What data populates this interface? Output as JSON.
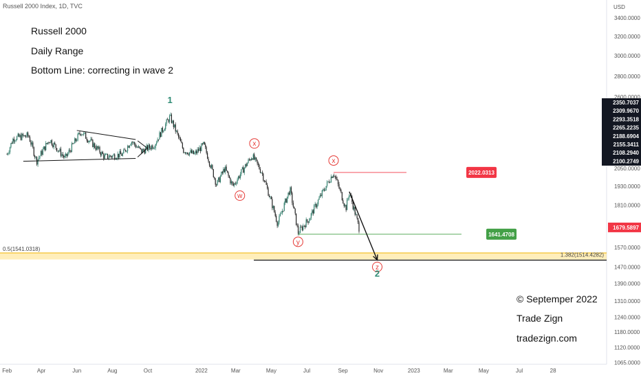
{
  "header": {
    "title": "Russell 2000 Index, 1D, TVC"
  },
  "notes": {
    "line1": "Russell 2000",
    "line2": "Daily Range",
    "line3": "Bottom Line: correcting in wave 2"
  },
  "footer": {
    "copyright": "© Septemper 2022",
    "brand": "Trade Zign",
    "site": "tradezign.com"
  },
  "colors": {
    "candle_up": "#2e7d6b",
    "candle_down": "#222222",
    "wave_label": "#2e8b74",
    "sub_wave": "#e53935",
    "red_tag": "#f23645",
    "green_tag": "#43a047",
    "price_tag": "#f23645",
    "fib_band": "#ffe082"
  },
  "chart_data": {
    "type": "candlestick",
    "title": "Russell 2000 Index, 1D, TVC",
    "currency": "USD",
    "x_range": [
      "2021-02-01",
      "2023-11-28"
    ],
    "ylim": [
      1065,
      3600
    ],
    "y_scale": "log",
    "y_ticks": [
      "3400.0000",
      "3200.0000",
      "3000.0000",
      "2800.0000",
      "2600.0000",
      "2050.0000",
      "1930.0000",
      "1810.0000",
      "1570.0000",
      "1470.0000",
      "1390.0000",
      "1310.0000",
      "1240.0000",
      "1180.0000",
      "1120.0000",
      "1065.0000"
    ],
    "x_ticks": [
      "Feb",
      "Apr",
      "Jun",
      "Aug",
      "Oct",
      "2022",
      "Mar",
      "May",
      "Jul",
      "Sep",
      "Nov",
      "2023",
      "Mar",
      "May",
      "Jul",
      "28"
    ],
    "x_tick_dates": [
      "2021-02-01",
      "2021-04-01",
      "2021-06-01",
      "2021-08-01",
      "2021-10-01",
      "2022-01-01",
      "2022-03-01",
      "2022-05-01",
      "2022-07-01",
      "2022-09-01",
      "2022-11-01",
      "2023-01-01",
      "2023-03-01",
      "2023-05-01",
      "2023-07-01",
      "2023-08-28"
    ],
    "stacked_labels": [
      "2350.7037",
      "2309.9670",
      "2293.3518",
      "2265.2235",
      "2188.6904",
      "2155.3411",
      "2108.2940",
      "2100.2749"
    ],
    "last_price": "1679.5897",
    "price_path": [
      {
        "date": "2021-02-01",
        "price": 2150
      },
      {
        "date": "2021-02-12",
        "price": 2270
      },
      {
        "date": "2021-03-10",
        "price": 2290
      },
      {
        "date": "2021-03-24",
        "price": 2100
      },
      {
        "date": "2021-04-15",
        "price": 2260
      },
      {
        "date": "2021-05-12",
        "price": 2120
      },
      {
        "date": "2021-06-08",
        "price": 2320
      },
      {
        "date": "2021-07-19",
        "price": 2130
      },
      {
        "date": "2021-08-19",
        "price": 2150
      },
      {
        "date": "2021-09-02",
        "price": 2250
      },
      {
        "date": "2021-09-20",
        "price": 2170
      },
      {
        "date": "2021-10-12",
        "price": 2220
      },
      {
        "date": "2021-11-08",
        "price": 2440
      },
      {
        "date": "2021-12-01",
        "price": 2180
      },
      {
        "date": "2021-12-20",
        "price": 2150
      },
      {
        "date": "2022-01-05",
        "price": 2220
      },
      {
        "date": "2022-01-27",
        "price": 1940
      },
      {
        "date": "2022-02-10",
        "price": 2050
      },
      {
        "date": "2022-02-24",
        "price": 1930
      },
      {
        "date": "2022-03-29",
        "price": 2140
      },
      {
        "date": "2022-04-15",
        "price": 2020
      },
      {
        "date": "2022-05-12",
        "price": 1700
      },
      {
        "date": "2022-06-02",
        "price": 1910
      },
      {
        "date": "2022-06-16",
        "price": 1650
      },
      {
        "date": "2022-07-05",
        "price": 1730
      },
      {
        "date": "2022-08-16",
        "price": 2022
      },
      {
        "date": "2022-09-06",
        "price": 1790
      },
      {
        "date": "2022-09-12",
        "price": 1890
      },
      {
        "date": "2022-09-30",
        "price": 1660
      }
    ],
    "annotations": {
      "triangle": {
        "start": "2021-06-01",
        "end": "2021-09-10",
        "upper": [
          2330,
          2260
        ],
        "lower": [
          2100,
          2120
        ]
      },
      "wave_1": {
        "label": "1",
        "date": "2021-11-08",
        "price": 2440
      },
      "w": {
        "label": "w",
        "date": "2022-03-08",
        "price": 1870
      },
      "x1": {
        "label": "x",
        "date": "2022-04-02",
        "price": 2230
      },
      "y": {
        "label": "y",
        "date": "2022-06-16",
        "price": 1600
      },
      "x2": {
        "label": "x",
        "date": "2022-08-16",
        "price": 2105
      },
      "z": {
        "label": "z",
        "date": "2022-10-30",
        "price": 1470
      },
      "wave_2": {
        "label": "2",
        "date": "2022-10-30",
        "price": 1430
      },
      "projection_arrow": {
        "from": {
          "date": "2022-09-12",
          "price": 1895
        },
        "to": {
          "date": "2022-10-30",
          "price": 1505
        }
      },
      "x_high_line": {
        "label": "2022.0313",
        "price": 2022.0313,
        "start": "2022-08-16",
        "end": "2022-12-31"
      },
      "y_low_line": {
        "label": "1641.4708",
        "price": 1641.4708,
        "start": "2022-06-16",
        "end": "2022-12-31"
      },
      "fib_05": {
        "label": "0.5(1541.0318)",
        "price": 1541.0318
      },
      "fib_1382": {
        "label": "1.382(1514.4282)",
        "price": 1514.4282,
        "start": "2022-04-01"
      }
    }
  }
}
